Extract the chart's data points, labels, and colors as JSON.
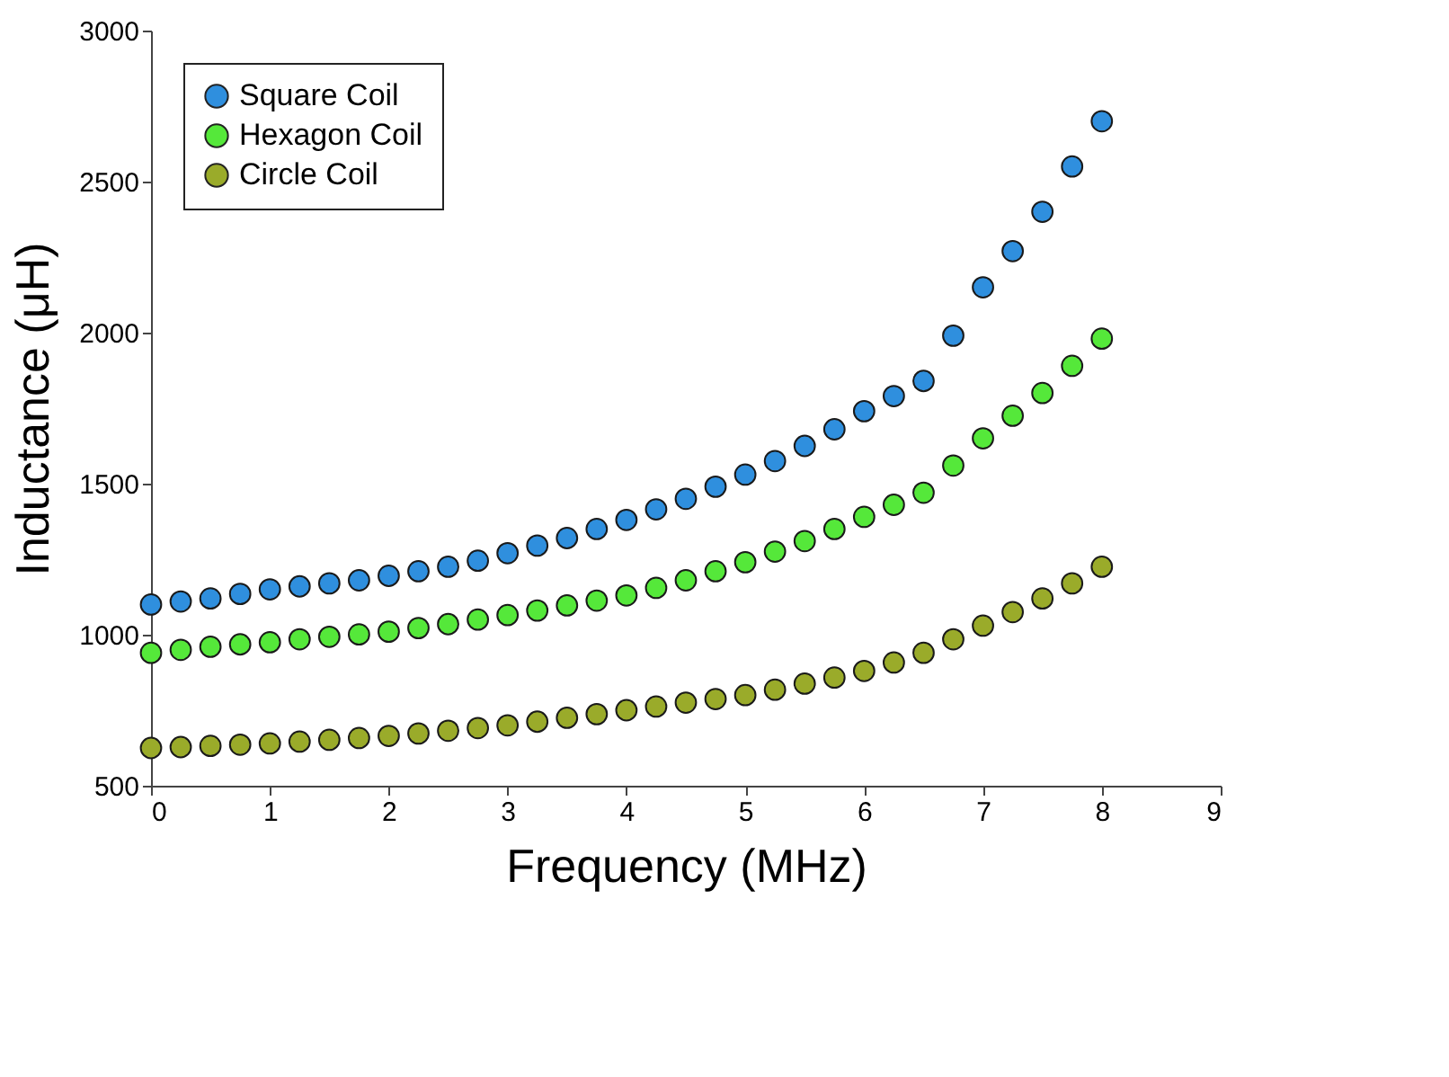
{
  "chart_data": {
    "type": "scatter",
    "xlabel": "Frequency  (MHz)",
    "ylabel": "Inductance (μH)",
    "x": [
      0,
      0.25,
      0.5,
      0.75,
      1,
      1.25,
      1.5,
      1.75,
      2,
      2.25,
      2.5,
      2.75,
      3,
      3.25,
      3.5,
      3.75,
      4,
      4.25,
      4.5,
      4.75,
      5,
      5.25,
      5.5,
      5.75,
      6,
      6.25,
      6.5,
      6.75,
      7,
      7.25,
      7.5,
      7.75,
      8
    ],
    "series": [
      {
        "name": "Square Coil",
        "color": "#2f8fde",
        "values": [
          1100,
          1110,
          1120,
          1135,
          1150,
          1160,
          1170,
          1180,
          1195,
          1210,
          1225,
          1245,
          1270,
          1295,
          1320,
          1350,
          1380,
          1415,
          1450,
          1490,
          1530,
          1575,
          1625,
          1680,
          1740,
          1790,
          1840,
          1990,
          2150,
          2270,
          2400,
          2550,
          2700
        ]
      },
      {
        "name": "Hexagon Coil",
        "color": "#55e83a",
        "values": [
          940,
          950,
          960,
          968,
          975,
          985,
          993,
          1001,
          1010,
          1022,
          1035,
          1050,
          1065,
          1080,
          1097,
          1113,
          1130,
          1155,
          1180,
          1210,
          1240,
          1275,
          1310,
          1350,
          1390,
          1430,
          1470,
          1560,
          1650,
          1725,
          1800,
          1890,
          1980
        ]
      },
      {
        "name": "Circle Coil",
        "color": "#9aab2a",
        "values": [
          625,
          628,
          632,
          636,
          640,
          646,
          652,
          658,
          665,
          673,
          682,
          691,
          700,
          712,
          725,
          737,
          750,
          762,
          775,
          787,
          800,
          818,
          838,
          858,
          880,
          908,
          940,
          985,
          1030,
          1075,
          1120,
          1170,
          1225
        ]
      }
    ],
    "xlim": [
      0,
      9
    ],
    "xticks": [
      0,
      1,
      2,
      3,
      4,
      5,
      6,
      7,
      8,
      9
    ],
    "ylim": [
      500,
      3000
    ],
    "yticks": [
      500,
      1000,
      1500,
      2000,
      2500,
      3000
    ],
    "grid": false,
    "legend": "top left",
    "marker": "circle"
  }
}
